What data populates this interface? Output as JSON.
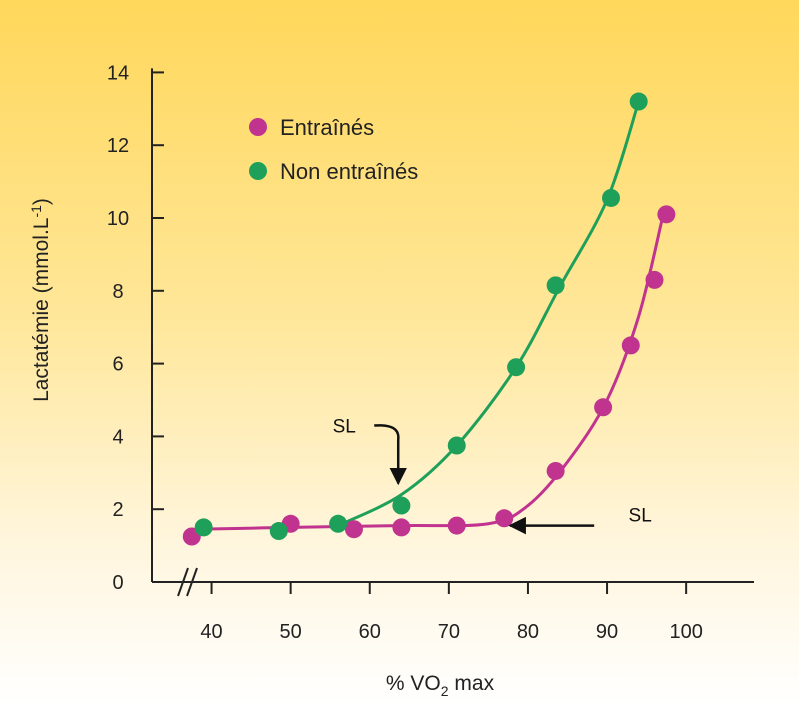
{
  "chart_data": {
    "type": "scatter",
    "xlabel": {
      "prefix": "% VO",
      "sub": "2",
      "suffix": " max"
    },
    "ylabel": "Lactatémie (mmol.L-1)",
    "ylabel_main": "Lactatémie (mmol.L",
    "ylabel_sup": "-1",
    "ylabel_close": ")",
    "xlim": [
      35,
      105
    ],
    "ylim": [
      0,
      14
    ],
    "x_ticks": [
      40,
      50,
      60,
      70,
      80,
      90,
      100
    ],
    "y_ticks": [
      0,
      2,
      4,
      6,
      8,
      10,
      12,
      14
    ],
    "x_axis_break": true,
    "legend_position": "top-left",
    "series": [
      {
        "name": "Entraînés",
        "color": "#c0338f",
        "points": [
          [
            37.5,
            1.25
          ],
          [
            50,
            1.6
          ],
          [
            58,
            1.45
          ],
          [
            64,
            1.5
          ],
          [
            71,
            1.55
          ],
          [
            77,
            1.75
          ],
          [
            83.5,
            3.05
          ],
          [
            89.5,
            4.8
          ],
          [
            93,
            6.5
          ],
          [
            96,
            8.3
          ],
          [
            97.5,
            10.1
          ]
        ]
      },
      {
        "name": "Non entraînés",
        "color": "#1fa05a",
        "points": [
          [
            39,
            1.5
          ],
          [
            48.5,
            1.4
          ],
          [
            56,
            1.6
          ],
          [
            64,
            2.1
          ],
          [
            71,
            3.75
          ],
          [
            78.5,
            5.9
          ],
          [
            83.5,
            8.15
          ],
          [
            90.5,
            10.55
          ],
          [
            94,
            13.2
          ]
        ]
      }
    ],
    "annotations": [
      {
        "text": "SL",
        "target_x": 63.6,
        "target_y": 2.65,
        "direction": "down"
      },
      {
        "text": "SL",
        "target_x": 77.5,
        "target_y": 1.55,
        "direction": "left"
      }
    ]
  }
}
